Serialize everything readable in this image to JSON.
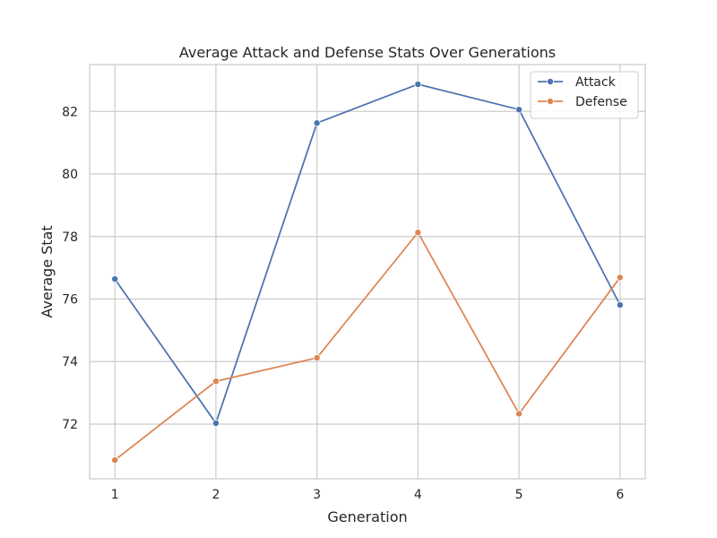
{
  "chart_data": {
    "type": "line",
    "title": "Average Attack and Defense Stats Over Generations",
    "xlabel": "Generation",
    "ylabel": "Average Stat",
    "x": [
      1,
      2,
      3,
      4,
      5,
      6
    ],
    "xticks": [
      "1",
      "2",
      "3",
      "4",
      "5",
      "6"
    ],
    "yticks": [
      72,
      74,
      76,
      78,
      80,
      82
    ],
    "xlim": [
      0.75,
      6.25
    ],
    "ylim": [
      70.25,
      83.5
    ],
    "grid": true,
    "legend_position": "top-right",
    "series": [
      {
        "name": "Attack",
        "color": "#4c72b0",
        "values": [
          76.64,
          72.03,
          81.63,
          82.87,
          82.06,
          75.81
        ]
      },
      {
        "name": "Defense",
        "color": "#dd8452",
        "values": [
          70.85,
          73.37,
          74.12,
          78.13,
          72.33,
          76.69
        ]
      }
    ]
  }
}
